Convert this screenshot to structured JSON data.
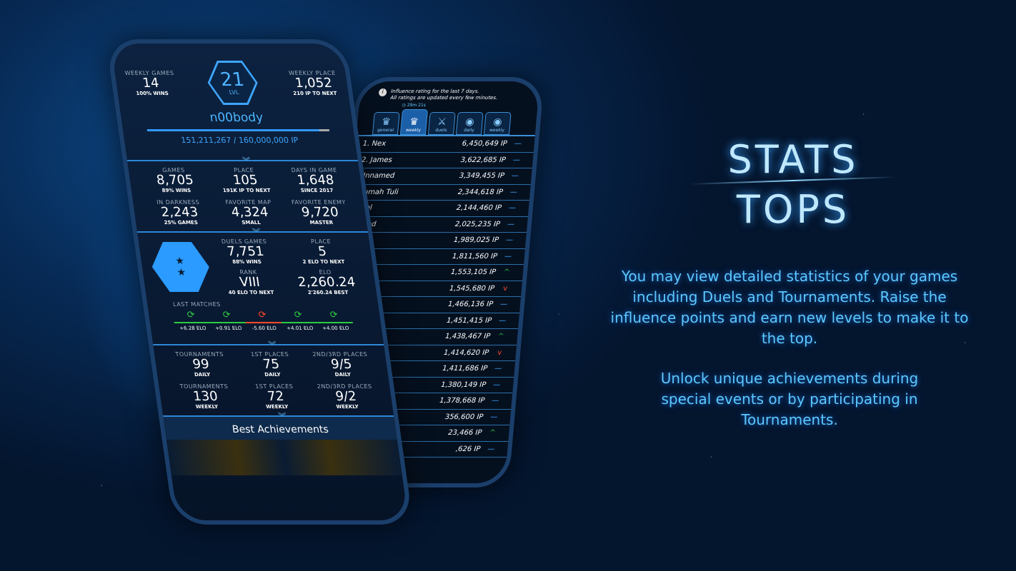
{
  "colors": {
    "accent": "#3ea6ff",
    "win": "#2ecc40",
    "loss": "#ff4a2a"
  },
  "profile": {
    "weekly_games_label": "WEEKLY GAMES",
    "weekly_games": "14",
    "weekly_wins": "100% WINS",
    "level": "21",
    "level_label": "LVL",
    "weekly_place_label": "WEEKLY PLACE",
    "weekly_place": "1,052",
    "weekly_place_sub": "210 IP TO NEXT",
    "username": "n00body",
    "ip_progress": "151,211,267 / 160,000,000 IP",
    "ip_fraction": 0.945
  },
  "stats": [
    {
      "label": "GAMES",
      "value": "8,705",
      "sub": "89% WINS"
    },
    {
      "label": "PLACE",
      "value": "105",
      "sub": "191K IP TO NEXT"
    },
    {
      "label": "DAYS IN GAME",
      "value": "1,648",
      "sub": "SINCE 2017"
    },
    {
      "label": "IN DARKNESS",
      "value": "2,243",
      "sub": "25% GAMES"
    },
    {
      "label": "FAVORITE MAP",
      "value": "4,324",
      "sub": "SMALL"
    },
    {
      "label": "FAVORITE ENEMY",
      "value": "9,720",
      "sub": "MASTER"
    }
  ],
  "duels": {
    "games_label": "DUELS GAMES",
    "games": "7,751",
    "wins": "88% WINS",
    "place_label": "PLACE",
    "place": "5",
    "place_sub": "2 ELO TO NEXT",
    "rank_label": "RANK",
    "rank": "VIII",
    "rank_sub": "40 ELO TO NEXT",
    "elo_label": "ELO",
    "elo": "2,260.24",
    "elo_sub": "2'260.24 BEST",
    "last_matches_label": "LAST MATCHES",
    "matches": [
      {
        "result": "win",
        "elo": "+6.28 ELO"
      },
      {
        "result": "win",
        "elo": "+0.91 ELO"
      },
      {
        "result": "loss",
        "elo": "-5.60 ELO"
      },
      {
        "result": "win",
        "elo": "+4.01 ELO"
      },
      {
        "result": "win",
        "elo": "+4.00 ELO"
      }
    ]
  },
  "tournaments": [
    {
      "label": "TOURNAMENTS",
      "value": "99",
      "sub": "DAILY"
    },
    {
      "label": "1ST PLACES",
      "value": "75",
      "sub": "DAILY"
    },
    {
      "label": "2ND/3RD PLACES",
      "value": "9/5",
      "sub": "DAILY"
    },
    {
      "label": "TOURNAMENTS",
      "value": "130",
      "sub": "WEEKLY"
    },
    {
      "label": "1ST PLACES",
      "value": "72",
      "sub": "WEEKLY"
    },
    {
      "label": "2ND/3RD PLACES",
      "value": "9/2",
      "sub": "WEEKLY"
    }
  ],
  "achievements_title": "Best Achievements",
  "tops": {
    "info_line1": "Influence rating for the last 7 days.",
    "info_line2": "All ratings are updated every few minutes.",
    "timer": "29m 21s",
    "tabs": [
      {
        "label": "general",
        "icon": "crown-icon"
      },
      {
        "label": "weekly",
        "icon": "crown-icon",
        "active": true
      },
      {
        "label": "duels",
        "icon": "crossed-swords-icon"
      },
      {
        "label": "daily",
        "icon": "helmet-icon"
      },
      {
        "label": "weekly",
        "icon": "helmet-icon"
      }
    ],
    "rows": [
      {
        "name": "1. Nex",
        "ip": "6,450,649 IP",
        "trend": "same"
      },
      {
        "name": "2. James",
        "ip": "3,622,685 IP",
        "trend": "same"
      },
      {
        "name": "Unnamed",
        "ip": "3,349,455 IP",
        "trend": "same"
      },
      {
        "name": "Rumah Tuli",
        "ip": "2,344,618 IP",
        "trend": "same"
      },
      {
        "name": "ncel",
        "ip": "2,144,460 IP",
        "trend": "same"
      },
      {
        "name": "amed",
        "ip": "2,025,235 IP",
        "trend": "same"
      },
      {
        "name": "",
        "ip": "1,989,025 IP",
        "trend": "same"
      },
      {
        "name": "",
        "ip": "1,811,560 IP",
        "trend": "same"
      },
      {
        "name": "",
        "ip": "1,553,105 IP",
        "trend": "up"
      },
      {
        "name": "",
        "ip": "1,545,680 IP",
        "trend": "down"
      },
      {
        "name": "",
        "ip": "1,466,136 IP",
        "trend": "same"
      },
      {
        "name": "",
        "ip": "1,451,415 IP",
        "trend": "same"
      },
      {
        "name": "",
        "ip": "1,438,467 IP",
        "trend": "up"
      },
      {
        "name": "",
        "ip": "1,414,620 IP",
        "trend": "down"
      },
      {
        "name": "",
        "ip": "1,411,686 IP",
        "trend": "same"
      },
      {
        "name": "",
        "ip": "1,380,149 IP",
        "trend": "same"
      },
      {
        "name": "",
        "ip": "1,378,668 IP",
        "trend": "same"
      },
      {
        "name": "",
        "ip": "356,600 IP",
        "trend": "same"
      },
      {
        "name": "",
        "ip": "23,466 IP",
        "trend": "up"
      },
      {
        "name": "",
        "ip": ",626 IP",
        "trend": "same"
      }
    ]
  },
  "promo": {
    "title1": "STATS",
    "title2": "TOPS",
    "para1": "You may view detailed statistics of your games including Duels and Tournaments. Raise the influence points and earn new levels to make it to the top.",
    "para2": "Unlock unique achievements during special events or by participating in Tournaments."
  }
}
